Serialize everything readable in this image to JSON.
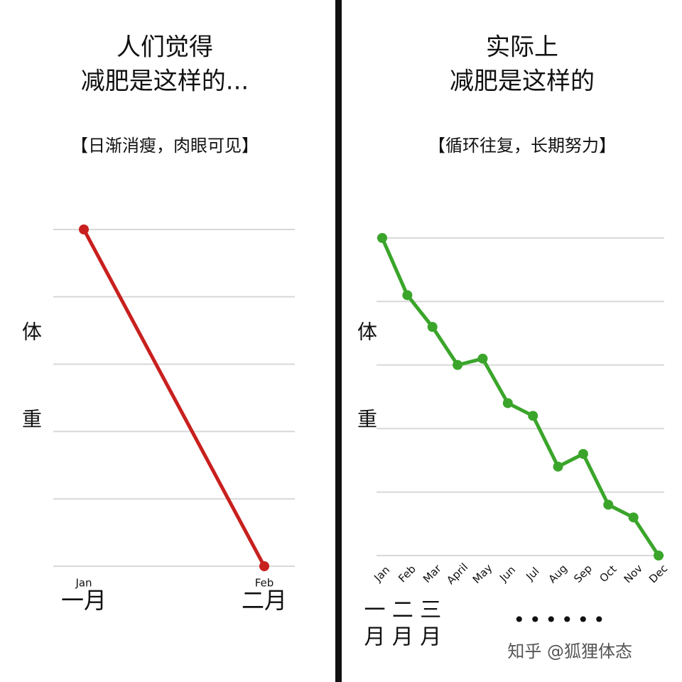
{
  "chart_data": [
    {
      "type": "line",
      "title": [
        "人们觉得",
        "减肥是这样的..."
      ],
      "subtitle": "【日渐消瘦，肉眼可见】",
      "ylabel": "体重",
      "categories": [
        "Jan",
        "Feb"
      ],
      "month_labels": [
        "一月",
        "二月"
      ],
      "series": [
        {
          "name": "体重",
          "color": "#c8201e",
          "values": [
            5,
            0
          ]
        }
      ],
      "ylim": [
        0,
        5
      ],
      "yticks": [
        0,
        1,
        2,
        3,
        4,
        5
      ],
      "grid": true
    },
    {
      "type": "line",
      "title": [
        "实际上",
        "减肥是这样的"
      ],
      "subtitle": "【循环往复，长期努力】",
      "ylabel": "体重",
      "categories": [
        "Jan",
        "Feb",
        "Mar",
        "April",
        "May",
        "Jun",
        "Jul",
        "Aug",
        "Sep",
        "Oct",
        "Nov",
        "Dec"
      ],
      "month_labels": [
        "一月",
        "二月",
        "三月"
      ],
      "continuation": "••••••",
      "series": [
        {
          "name": "体重",
          "color": "#3aa52a",
          "values": [
            5,
            4.1,
            3.6,
            3.0,
            3.1,
            2.4,
            2.2,
            1.4,
            1.6,
            0.8,
            0.6,
            0
          ]
        }
      ],
      "ylim": [
        0,
        5
      ],
      "yticks": [
        0,
        1,
        2,
        3,
        4,
        5
      ],
      "grid": true
    }
  ],
  "watermark": "知乎 @狐狸体态"
}
